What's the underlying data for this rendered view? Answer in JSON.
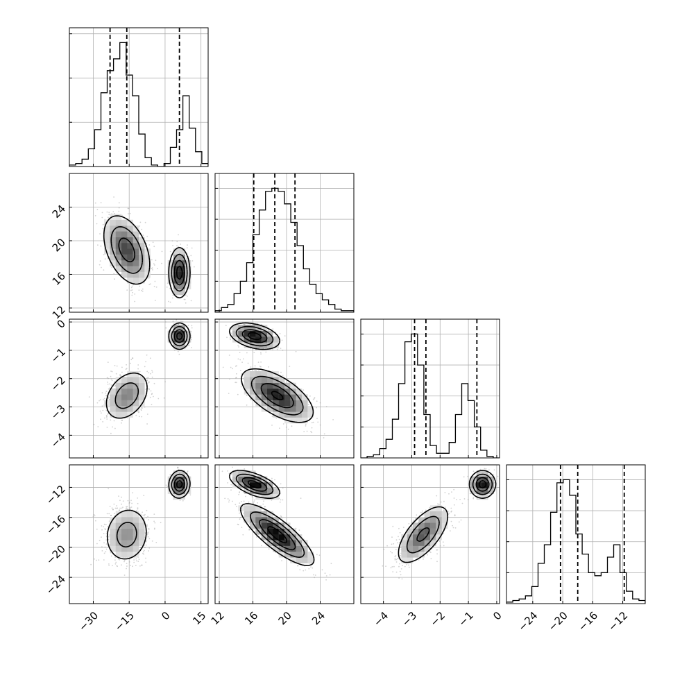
{
  "chart_data": {
    "type": "corner",
    "title": "",
    "grid": true,
    "params": [
      {
        "range": [
          -40,
          18
        ],
        "ticks": [
          -30,
          -15,
          0,
          15
        ],
        "tick_labels": [
          "−30",
          "−15",
          "0",
          "15"
        ],
        "quantiles": [
          -23,
          -16,
          6
        ],
        "histogram": [
          1,
          2,
          5,
          12,
          25,
          50,
          65,
          73,
          84,
          62,
          48,
          22,
          6,
          1,
          0,
          2,
          13,
          25,
          48,
          26,
          10,
          2
        ],
        "modes": [
          {
            "mean": [
              -16,
              18.9
            ],
            "cov": [
              [
                25,
                -4.5
              ],
              [
                -4.5,
                4.5
              ]
            ],
            "weight": 0.7
          },
          {
            "mean": [
              6,
              16.2
            ],
            "cov": [
              [
                4.5,
                0
              ],
              [
                0,
                2.1
              ]
            ],
            "weight": 0.3
          }
        ]
      },
      {
        "range": [
          11.5,
          28
        ],
        "ticks": [
          12,
          16,
          20,
          24
        ],
        "tick_labels": [
          "12",
          "16",
          "20",
          "24"
        ],
        "quantiles": [
          16.1,
          18.6,
          21.0
        ],
        "histogram": [
          1,
          3,
          5,
          12,
          20,
          32,
          50,
          66,
          78,
          80,
          78,
          70,
          58,
          43,
          28,
          18,
          12,
          8,
          5,
          2,
          1,
          1
        ],
        "modes": [
          {
            "mean": [
              18.9,
              -2.6
            ],
            "cov": [
              [
                4.5,
                -0.62
              ],
              [
                -0.62,
                0.22
              ]
            ],
            "weight": 0.7
          },
          {
            "mean": [
              16.2,
              -0.5
            ],
            "cov": [
              [
                2.1,
                -0.12
              ],
              [
                -0.12,
                0.05
              ]
            ],
            "weight": 0.3
          }
        ]
      },
      {
        "range": [
          -4.8,
          0.1
        ],
        "ticks": [
          -4,
          -3,
          -2,
          -1,
          0
        ],
        "tick_labels": [
          "−4",
          "−3",
          "−2",
          "−1",
          "0"
        ],
        "quantiles": [
          -2.9,
          -2.5,
          -0.7
        ],
        "histogram": [
          0,
          1,
          2,
          6,
          12,
          25,
          48,
          75,
          80,
          60,
          28,
          8,
          3,
          3,
          10,
          28,
          48,
          37,
          20,
          5,
          1,
          0
        ],
        "modes": [
          {
            "mean": [
              -2.6,
              -18.3
            ],
            "cov": [
              [
                0.22,
                0.62
              ],
              [
                0.62,
                4.0
              ]
            ],
            "weight": 0.7
          },
          {
            "mean": [
              -0.5,
              -11.6
            ],
            "cov": [
              [
                0.05,
                0
              ],
              [
                0,
                0.8
              ]
            ],
            "weight": 0.3
          }
        ]
      },
      {
        "range": [
          -27.5,
          -9
        ],
        "ticks": [
          -24,
          -20,
          -16,
          -12
        ],
        "tick_labels": [
          "−24",
          "−20",
          "−16",
          "−12"
        ],
        "quantiles": [
          -20.3,
          -18.0,
          -11.8
        ],
        "histogram": [
          1,
          2,
          3,
          5,
          11,
          26,
          38,
          59,
          78,
          80,
          70,
          45,
          32,
          20,
          18,
          20,
          30,
          38,
          20,
          8,
          3,
          2
        ],
        "modes": []
      }
    ]
  }
}
